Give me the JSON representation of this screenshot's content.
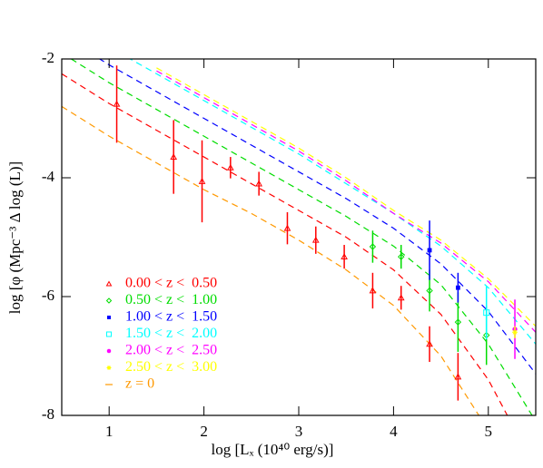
{
  "chart_data": {
    "type": "scatter",
    "xlabel": "log [Lₓ (10⁴⁰ erg/s)]",
    "ylabel": "log [φ (Mpc⁻³ Δ log (L)]",
    "xlim": [
      0.5,
      5.5
    ],
    "ylim": [
      -8,
      -2
    ],
    "xticks": [
      1,
      2,
      3,
      4,
      5
    ],
    "yticks": [
      -8,
      -6,
      -4,
      -2
    ],
    "series": [
      {
        "name": "0.00 < z <  0.50",
        "color": "#ff0000",
        "marker": "triangle",
        "x": [
          1.08,
          1.68,
          1.98,
          2.28,
          2.58,
          2.88,
          3.18,
          3.48,
          3.78,
          4.08,
          4.38,
          4.68
        ],
        "values": [
          -2.76,
          -3.65,
          -4.06,
          -3.83,
          -4.1,
          -4.85,
          -5.05,
          -5.33,
          -5.9,
          -6.02,
          -6.8,
          -7.35
        ],
        "errors": [
          0.65,
          0.62,
          0.69,
          0.18,
          0.2,
          0.27,
          0.23,
          0.2,
          0.3,
          0.2,
          0.3,
          0.4
        ]
      },
      {
        "name": "0.50 < z <  1.00",
        "color": "#00dd00",
        "marker": "diamond",
        "x": [
          3.78,
          4.08,
          4.38,
          4.68,
          4.98
        ],
        "values": [
          -5.16,
          -5.33,
          -5.9,
          -6.43,
          -6.65
        ],
        "errors": [
          0.27,
          0.2,
          0.35,
          0.5,
          0.5
        ]
      },
      {
        "name": "1.00 < z <  1.50",
        "color": "#0000ff",
        "marker": "square",
        "x": [
          4.38,
          4.68
        ],
        "values": [
          -5.22,
          -5.85
        ],
        "errors": [
          0.5,
          0.25
        ]
      },
      {
        "name": "1.50 < z <  2.00",
        "color": "#00ffff",
        "marker": "open-square",
        "x": [
          4.98
        ],
        "values": [
          -6.27
        ],
        "errors": [
          0.45
        ]
      },
      {
        "name": "2.00 < z <  2.50",
        "color": "#ff00ff",
        "marker": "circle",
        "x": [
          5.28
        ],
        "values": [
          -6.55
        ],
        "errors": [
          0.5
        ]
      },
      {
        "name": "2.50 < z <  3.00",
        "color": "#ffff00",
        "marker": "star",
        "x": [
          5.28
        ],
        "values": [
          -6.6
        ],
        "errors": [
          0.1
        ]
      }
    ],
    "curves": [
      {
        "color": "#ff0000",
        "x": [
          0.5,
          1,
          1.5,
          2,
          2.5,
          3,
          3.5,
          4,
          4.5,
          5,
          5.5
        ],
        "values": [
          -2.25,
          -2.75,
          -3.2,
          -3.65,
          -4.1,
          -4.55,
          -5.0,
          -5.55,
          -6.3,
          -7.4,
          -8.9
        ]
      },
      {
        "color": "#00dd00",
        "x": [
          0.5,
          1,
          1.5,
          2,
          2.5,
          3,
          3.5,
          4,
          4.5,
          5,
          5.5
        ],
        "values": [
          -1.9,
          -2.4,
          -2.85,
          -3.3,
          -3.75,
          -4.2,
          -4.65,
          -5.15,
          -5.8,
          -6.8,
          -8.1
        ]
      },
      {
        "color": "#0000ff",
        "x": [
          0.5,
          1,
          1.5,
          2,
          2.5,
          3,
          3.5,
          4,
          4.5,
          5,
          5.5
        ],
        "values": [
          -1.6,
          -2.1,
          -2.55,
          -3.0,
          -3.45,
          -3.9,
          -4.35,
          -4.85,
          -5.45,
          -6.25,
          -7.3
        ]
      },
      {
        "color": "#00ffff",
        "x": [
          0.5,
          1,
          1.5,
          2,
          2.5,
          3,
          3.5,
          4,
          4.5,
          5,
          5.5
        ],
        "values": [
          -1.3,
          -1.8,
          -2.25,
          -2.7,
          -3.15,
          -3.6,
          -4.1,
          -4.6,
          -5.15,
          -5.85,
          -6.8
        ]
      },
      {
        "color": "#ff00ff",
        "x": [
          1.5,
          2,
          2.5,
          3,
          3.5,
          4,
          4.5,
          5,
          5.5
        ],
        "values": [
          -2.2,
          -2.65,
          -3.1,
          -3.55,
          -4.05,
          -4.6,
          -5.1,
          -5.75,
          -6.6
        ]
      },
      {
        "color": "#ffff00",
        "x": [
          1.5,
          2,
          2.5,
          3,
          3.5,
          4,
          4.5,
          5,
          5.5
        ],
        "values": [
          -2.15,
          -2.6,
          -3.05,
          -3.5,
          -4.0,
          -4.55,
          -5.05,
          -5.7,
          -6.5
        ]
      },
      {
        "name": "z = 0",
        "color": "#ff9900",
        "x": [
          0.5,
          1,
          1.5,
          2,
          2.5,
          3,
          3.5,
          4,
          4.5,
          5
        ],
        "values": [
          -2.8,
          -3.3,
          -3.75,
          -4.2,
          -4.6,
          -5.05,
          -5.55,
          -6.15,
          -7.0,
          -8.25
        ]
      }
    ]
  }
}
